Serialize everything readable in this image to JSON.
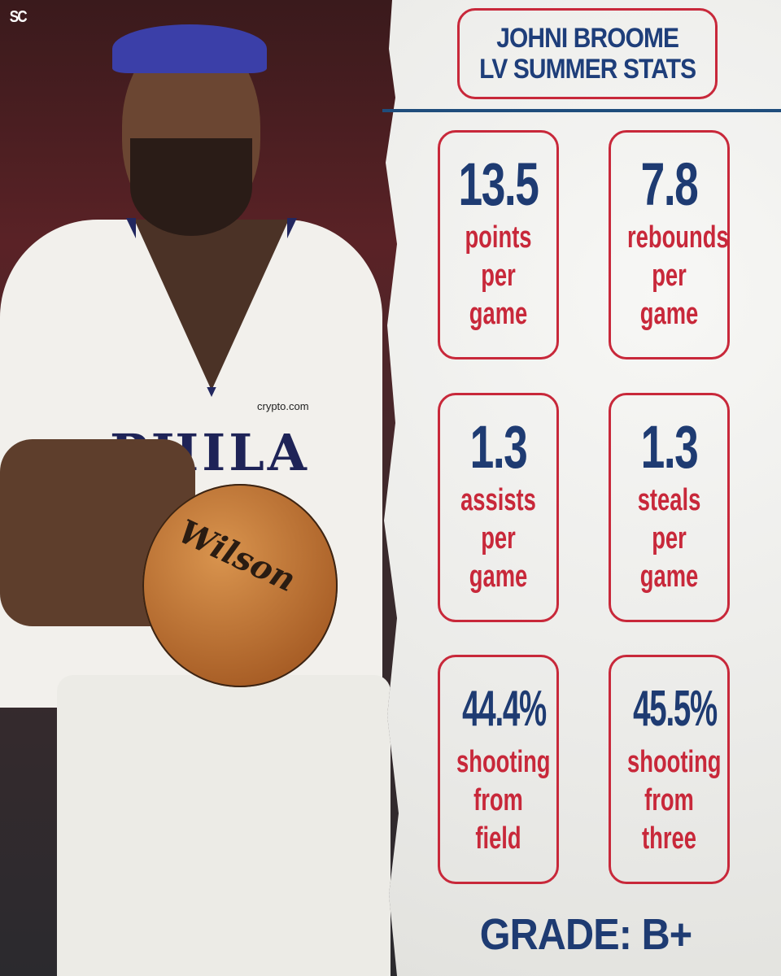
{
  "logo": "SC",
  "photo": {
    "jersey_text": "PHILA",
    "sponsor": "crypto.com",
    "ball_brand": "Wilson"
  },
  "title": {
    "line1": "JOHNI BROOME",
    "line2": "LV SUMMER STATS"
  },
  "stats": [
    {
      "value": "13.5",
      "label": [
        "points",
        "per",
        "game"
      ]
    },
    {
      "value": "7.8",
      "label": [
        "rebounds",
        "per",
        "game"
      ]
    },
    {
      "value": "1.3",
      "label": [
        "assists",
        "per",
        "game"
      ]
    },
    {
      "value": "1.3",
      "label": [
        "steals",
        "per",
        "game"
      ]
    },
    {
      "value": "44.4%",
      "label": [
        "shooting",
        "from",
        "field"
      ]
    },
    {
      "value": "45.5%",
      "label": [
        "shooting",
        "from",
        "three"
      ]
    }
  ],
  "grade": "GRADE: B+",
  "colors": {
    "navy": "#1e3b72",
    "red": "#c8283a",
    "paper": "#efefec"
  }
}
